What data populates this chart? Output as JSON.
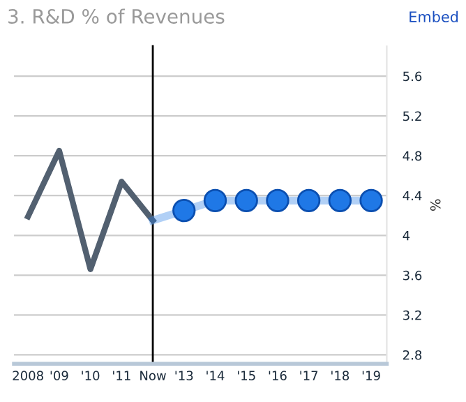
{
  "chart_data": {
    "type": "line",
    "title": "3. R&D % of Revenues",
    "ylabel": "%",
    "categories": [
      "2008",
      "'09",
      "'10",
      "'11",
      "Now",
      "'13",
      "'14",
      "'15",
      "'16",
      "'17",
      "'18",
      "'19"
    ],
    "series": [
      {
        "color": "#526070",
        "marker": "none",
        "values": [
          4.19,
          4.85,
          3.66,
          4.54,
          4.15,
          null,
          null,
          null,
          null,
          null,
          null,
          null
        ]
      },
      {
        "color": "#1f78e6",
        "marker": "circle",
        "values": [
          null,
          null,
          null,
          null,
          4.15,
          4.25,
          4.35,
          4.35,
          4.35,
          4.35,
          4.35,
          4.35
        ]
      }
    ],
    "ylim": [
      2.71,
      5.9
    ],
    "yticks": [
      2.8,
      3.2,
      3.6,
      4,
      4.4,
      4.8,
      5.2,
      5.6
    ],
    "grid": "y",
    "legend": false,
    "ref_lines": [
      {
        "axis": "x",
        "value": "Now",
        "color": "#000000"
      }
    ],
    "annotations": [
      "Embed"
    ]
  }
}
